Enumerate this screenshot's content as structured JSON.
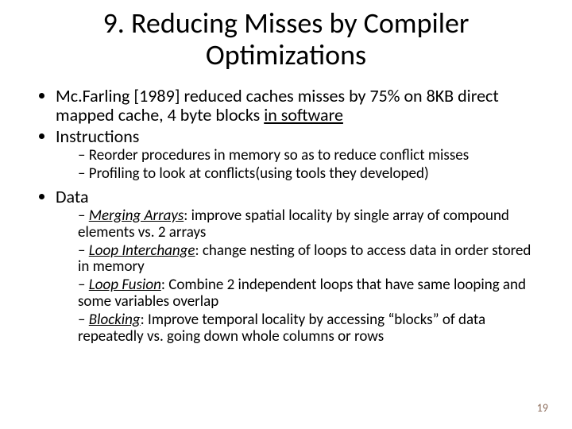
{
  "title": "9. Reducing Misses by Compiler Optimizations",
  "b1_a": "Mc.Farling [1989] reduced caches misses by 75% on 8KB direct mapped cache, 4 byte blocks ",
  "b1_u": "in software",
  "b2": "Instructions",
  "s2a": "Reorder procedures in memory so as to reduce conflict misses",
  "s2b": "Profiling to look at conflicts(using tools they developed)",
  "b3": "Data",
  "s3a_t": "Merging Arrays",
  "s3a_r": ": improve spatial locality by single array of compound elements vs. 2 arrays",
  "s3b_t": "Loop Interchange",
  "s3b_r": ": change nesting of loops to access data in order stored in memory",
  "s3c_t": "Loop Fusion",
  "s3c_r": ": Combine 2 independent loops that have same looping and some variables overlap",
  "s3d_t": "Blocking",
  "s3d_r": ": Improve temporal locality by accessing “blocks” of data repeatedly vs. going down whole columns or rows",
  "page": "19"
}
